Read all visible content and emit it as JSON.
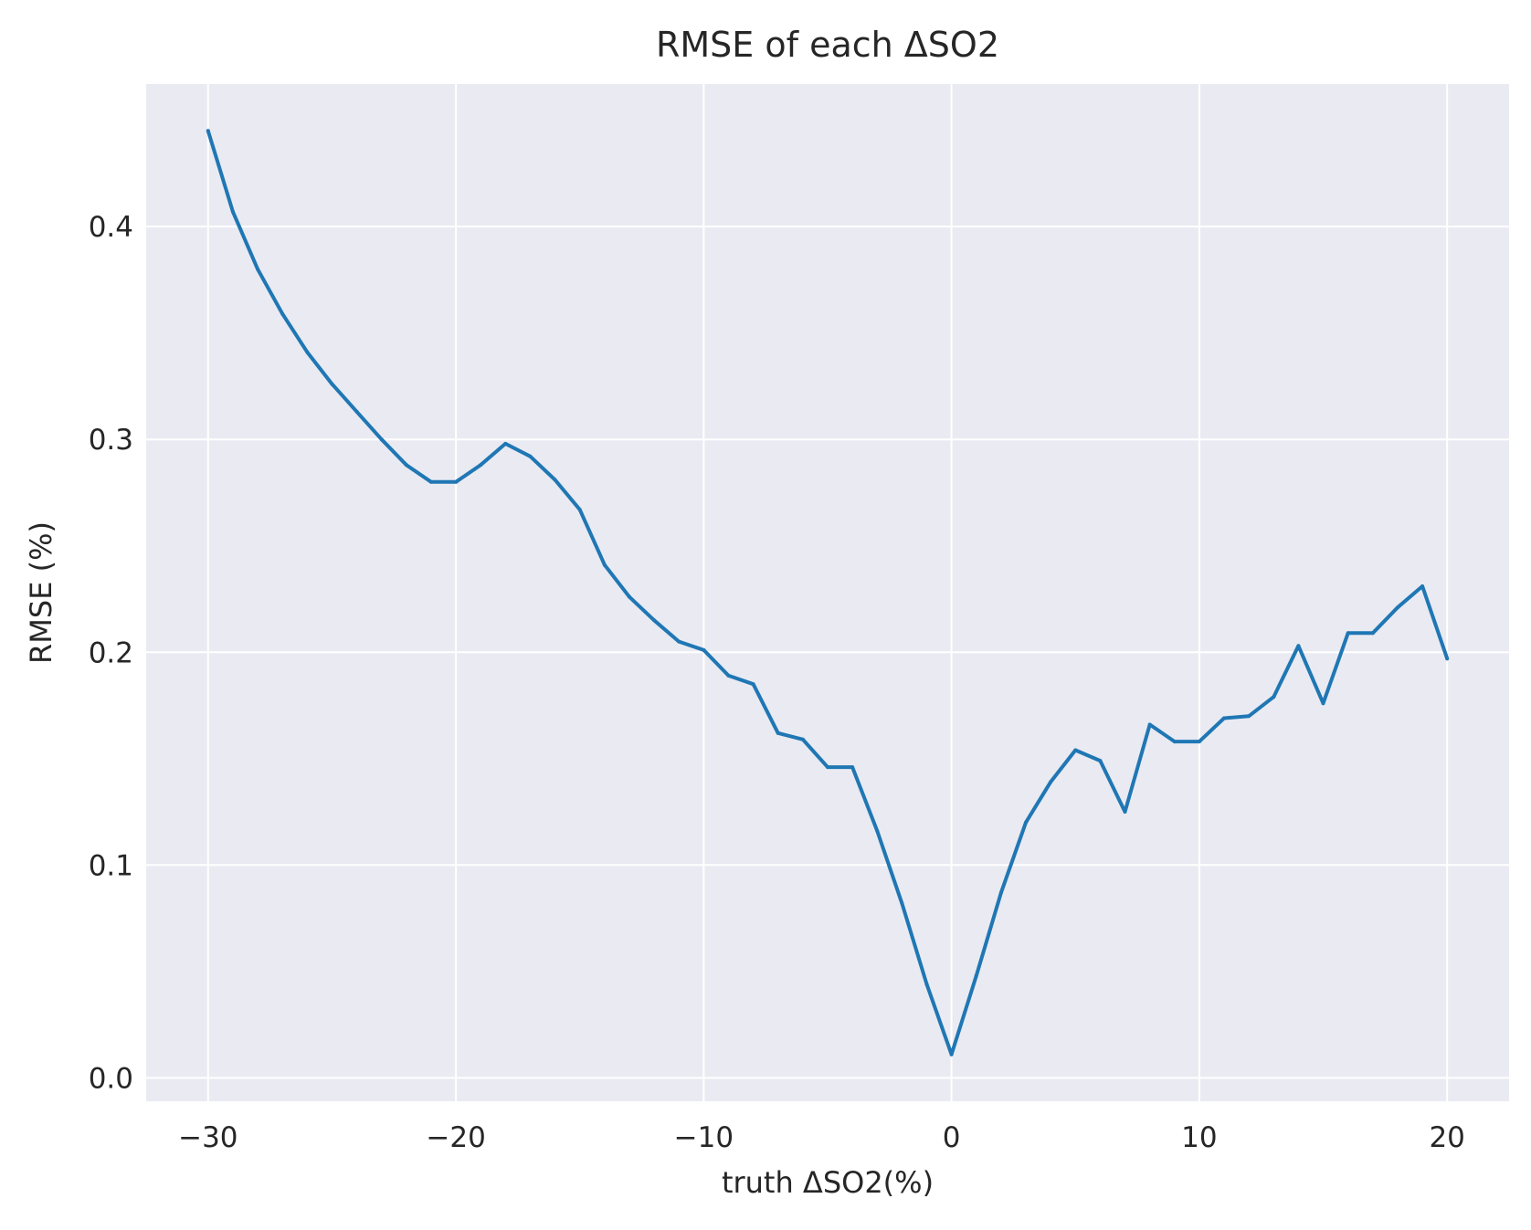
{
  "chart_data": {
    "type": "line",
    "title": "RMSE of each ΔSO2",
    "xlabel": "truth ΔSO2(%)",
    "ylabel": "RMSE (%)",
    "xlim": [
      -32.5,
      22.5
    ],
    "ylim": [
      -0.011,
      0.467
    ],
    "grid": true,
    "background": "#eaeaf2",
    "grid_color": "#ffffff",
    "line_color": "#1f77b4",
    "xticks": [
      -30,
      -20,
      -10,
      0,
      10,
      20
    ],
    "xtick_labels": [
      "−30",
      "−20",
      "−10",
      "0",
      "10",
      "20"
    ],
    "yticks": [
      0.0,
      0.1,
      0.2,
      0.3,
      0.4
    ],
    "ytick_labels": [
      "0.0",
      "0.1",
      "0.2",
      "0.3",
      "0.4"
    ],
    "series": [
      {
        "x": [
          -30,
          -29,
          -28,
          -27,
          -26,
          -25,
          -24,
          -23,
          -22,
          -21,
          -20,
          -19,
          -18,
          -17,
          -16,
          -15,
          -14,
          -13,
          -12,
          -11,
          -10,
          -9,
          -8,
          -7,
          -6,
          -5,
          -4,
          -3,
          -2,
          -1,
          0,
          1,
          2,
          3,
          4,
          5,
          6,
          7,
          8,
          9,
          10,
          11,
          12,
          13,
          14,
          15,
          16,
          17,
          18,
          19,
          20
        ],
        "y": [
          0.445,
          0.407,
          0.38,
          0.359,
          0.341,
          0.326,
          0.313,
          0.3,
          0.288,
          0.28,
          0.28,
          0.288,
          0.298,
          0.292,
          0.281,
          0.267,
          0.241,
          0.226,
          0.215,
          0.205,
          0.201,
          0.189,
          0.185,
          0.162,
          0.159,
          0.146,
          0.146,
          0.116,
          0.082,
          0.044,
          0.011,
          0.048,
          0.087,
          0.12,
          0.139,
          0.154,
          0.149,
          0.125,
          0.166,
          0.158,
          0.158,
          0.169,
          0.17,
          0.179,
          0.203,
          0.176,
          0.209,
          0.209,
          0.221,
          0.231,
          0.197
        ]
      }
    ]
  }
}
